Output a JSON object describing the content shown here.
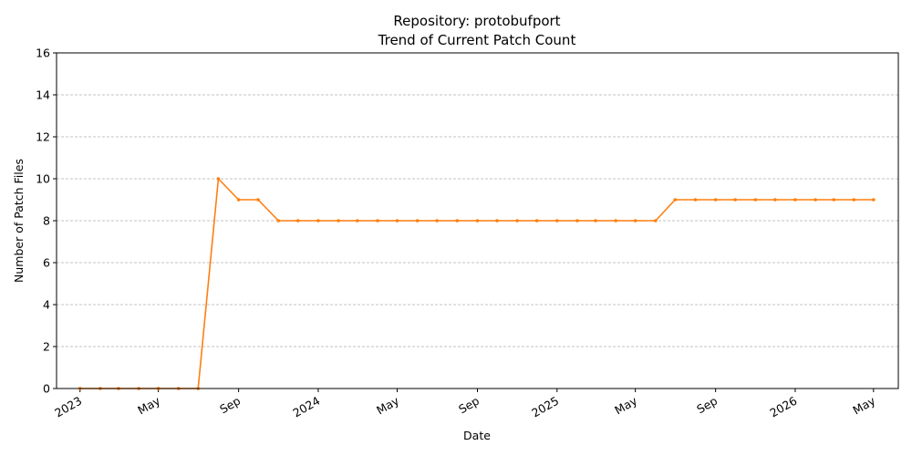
{
  "chart_data": {
    "type": "line",
    "title": "Repository: protobufport",
    "subtitle": "Trend of Current Patch Count",
    "xlabel": "Date",
    "ylabel": "Number of Patch Files",
    "ylim": [
      0,
      16
    ],
    "yticks": [
      0,
      2,
      4,
      6,
      8,
      10,
      12,
      14,
      16
    ],
    "xlim": [
      "2022-11-26",
      "2026-06-08"
    ],
    "xticks": [
      {
        "date": "2023-01-01",
        "label": "2023"
      },
      {
        "date": "2023-05-01",
        "label": "May"
      },
      {
        "date": "2023-09-01",
        "label": "Sep"
      },
      {
        "date": "2024-01-01",
        "label": "2024"
      },
      {
        "date": "2024-05-01",
        "label": "May"
      },
      {
        "date": "2024-09-01",
        "label": "Sep"
      },
      {
        "date": "2025-01-01",
        "label": "2025"
      },
      {
        "date": "2025-05-01",
        "label": "May"
      },
      {
        "date": "2025-09-01",
        "label": "Sep"
      },
      {
        "date": "2026-01-01",
        "label": "2026"
      },
      {
        "date": "2026-05-01",
        "label": "May"
      }
    ],
    "grid": "y-dashed",
    "line_color": "#ff7f0e",
    "series": [
      {
        "x": [
          "2023-01-01",
          "2023-02-01",
          "2023-03-01",
          "2023-04-01",
          "2023-05-01",
          "2023-06-01",
          "2023-07-01",
          "2023-08-01",
          "2023-09-01",
          "2023-10-01",
          "2023-11-01",
          "2023-12-01",
          "2024-01-01",
          "2024-02-01",
          "2024-03-01",
          "2024-04-01",
          "2024-05-01",
          "2024-06-01",
          "2024-07-01",
          "2024-08-01",
          "2024-09-01",
          "2024-10-01",
          "2024-11-01",
          "2024-12-01",
          "2025-01-01",
          "2025-02-01",
          "2025-03-01",
          "2025-04-01",
          "2025-05-01",
          "2025-06-01",
          "2025-07-01",
          "2025-08-01",
          "2025-09-01",
          "2025-10-01",
          "2025-11-01",
          "2025-12-01",
          "2026-01-01",
          "2026-02-01",
          "2026-03-01",
          "2026-04-01",
          "2026-05-01"
        ],
        "values": [
          0,
          0,
          0,
          0,
          0,
          0,
          0,
          10,
          9,
          9,
          8,
          8,
          8,
          8,
          8,
          8,
          8,
          8,
          8,
          8,
          8,
          8,
          8,
          8,
          8,
          8,
          8,
          8,
          8,
          8,
          9,
          9,
          9,
          9,
          9,
          9,
          9,
          9,
          9,
          9,
          9
        ]
      }
    ]
  }
}
